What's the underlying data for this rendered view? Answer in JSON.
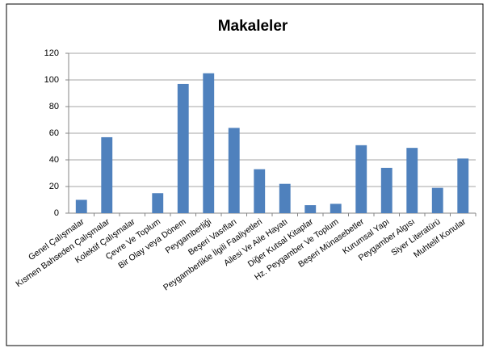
{
  "chart_data": {
    "type": "bar",
    "title": "Makaleler",
    "categories": [
      "Genel Çalışmalar",
      "Kısmen Bahseden Çalışmalar",
      "Kolektif Çalışmalar",
      "Çevre Ve Toplum",
      "Bir Olay veya Dönem",
      "Peygamberliği",
      "Beşeri Vasıfları",
      "Peygamberlikle İlgili Faaliyetleri",
      "Ailesi Ve Aile Hayatı",
      "Diğer Kutsal Kitaplar",
      "Hz. Peygamber Ve Toplum",
      "Beşeri Münasebetler",
      "Kurumsal Yapı",
      "Peygamber Algısı",
      "Siyer Literatürü",
      "Muhtelif Konular"
    ],
    "values": [
      10,
      57,
      0,
      15,
      97,
      105,
      64,
      33,
      22,
      6,
      7,
      51,
      34,
      49,
      19,
      41
    ],
    "color": "#4f81bd",
    "ylim": [
      0,
      120
    ],
    "yticks": [
      0,
      20,
      40,
      60,
      80,
      100,
      120
    ],
    "grid": true
  }
}
